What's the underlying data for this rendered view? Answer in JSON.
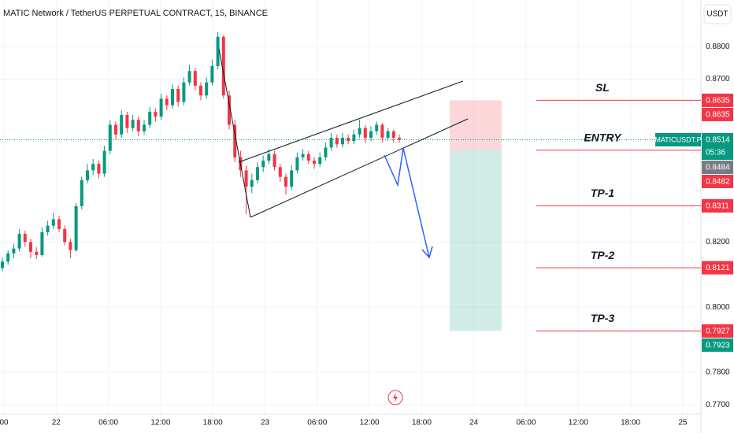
{
  "header": {
    "title": "MATIC Network / TetherUS PERPETUAL CONTRACT, 15, BINANCE",
    "currency": "USDT"
  },
  "chart_data": {
    "type": "candlestick",
    "up_color": "#089981",
    "down_color": "#f23645",
    "ylim": [
      0.7662,
      0.8943
    ],
    "yticks": [
      {
        "value": 0.88,
        "label": "0.8800"
      },
      {
        "value": 0.87,
        "label": "0.8700"
      },
      {
        "value": 0.82,
        "label": "0.8200"
      },
      {
        "value": 0.8,
        "label": "0.8000"
      },
      {
        "value": 0.78,
        "label": "0.7800"
      },
      {
        "value": 0.77,
        "label": "0.7700"
      }
    ],
    "x_labels": [
      "00",
      "22",
      "06:00",
      "12:00",
      "18:00",
      "23",
      "06:00",
      "12:00",
      "18:00",
      "24",
      "06:00",
      "12:00",
      "18:00",
      "25"
    ],
    "candles": [
      [
        0.812,
        0.8152,
        0.811,
        0.814
      ],
      [
        0.814,
        0.8175,
        0.813,
        0.8165
      ],
      [
        0.8165,
        0.8195,
        0.815,
        0.818
      ],
      [
        0.818,
        0.824,
        0.817,
        0.8225
      ],
      [
        0.8225,
        0.8235,
        0.8185,
        0.82
      ],
      [
        0.82,
        0.821,
        0.815,
        0.817
      ],
      [
        0.817,
        0.8185,
        0.8148,
        0.816
      ],
      [
        0.816,
        0.8245,
        0.8155,
        0.823
      ],
      [
        0.823,
        0.8265,
        0.822,
        0.825
      ],
      [
        0.825,
        0.829,
        0.824,
        0.827
      ],
      [
        0.827,
        0.828,
        0.823,
        0.824
      ],
      [
        0.824,
        0.825,
        0.819,
        0.82
      ],
      [
        0.82,
        0.821,
        0.815,
        0.8175
      ],
      [
        0.8175,
        0.832,
        0.817,
        0.831
      ],
      [
        0.831,
        0.84,
        0.83,
        0.839
      ],
      [
        0.839,
        0.844,
        0.838,
        0.842
      ],
      [
        0.842,
        0.8455,
        0.8405,
        0.844
      ],
      [
        0.844,
        0.845,
        0.8395,
        0.841
      ],
      [
        0.841,
        0.8495,
        0.84,
        0.848
      ],
      [
        0.848,
        0.8575,
        0.847,
        0.856
      ],
      [
        0.856,
        0.857,
        0.8515,
        0.853
      ],
      [
        0.853,
        0.8605,
        0.852,
        0.859
      ],
      [
        0.859,
        0.86,
        0.8535,
        0.855
      ],
      [
        0.855,
        0.859,
        0.854,
        0.8575
      ],
      [
        0.8575,
        0.8585,
        0.8525,
        0.854
      ],
      [
        0.854,
        0.8575,
        0.853,
        0.856
      ],
      [
        0.856,
        0.8615,
        0.855,
        0.86
      ],
      [
        0.86,
        0.861,
        0.857,
        0.8585
      ],
      [
        0.8585,
        0.8655,
        0.8575,
        0.864
      ],
      [
        0.864,
        0.865,
        0.8605,
        0.862
      ],
      [
        0.862,
        0.8685,
        0.861,
        0.867
      ],
      [
        0.867,
        0.868,
        0.8615,
        0.863
      ],
      [
        0.863,
        0.8705,
        0.862,
        0.869
      ],
      [
        0.869,
        0.8745,
        0.868,
        0.8725
      ],
      [
        0.8725,
        0.8735,
        0.8665,
        0.868
      ],
      [
        0.868,
        0.869,
        0.8635,
        0.865
      ],
      [
        0.865,
        0.8705,
        0.864,
        0.869
      ],
      [
        0.869,
        0.876,
        0.868,
        0.874
      ],
      [
        0.874,
        0.8845,
        0.873,
        0.883
      ],
      [
        0.883,
        0.8835,
        0.864,
        0.865
      ],
      [
        0.865,
        0.8665,
        0.8545,
        0.856
      ],
      [
        0.856,
        0.8575,
        0.8445,
        0.846
      ],
      [
        0.846,
        0.848,
        0.84,
        0.842
      ],
      [
        0.842,
        0.8435,
        0.8285,
        0.837
      ],
      [
        0.837,
        0.841,
        0.835,
        0.839
      ],
      [
        0.839,
        0.8445,
        0.838,
        0.843
      ],
      [
        0.843,
        0.8465,
        0.8415,
        0.845
      ],
      [
        0.845,
        0.8485,
        0.844,
        0.847
      ],
      [
        0.847,
        0.848,
        0.842,
        0.843
      ],
      [
        0.843,
        0.844,
        0.8385,
        0.84
      ],
      [
        0.84,
        0.841,
        0.8345,
        0.837
      ],
      [
        0.837,
        0.8435,
        0.836,
        0.842
      ],
      [
        0.842,
        0.8475,
        0.841,
        0.846
      ],
      [
        0.846,
        0.8485,
        0.845,
        0.847
      ],
      [
        0.847,
        0.848,
        0.844,
        0.845
      ],
      [
        0.845,
        0.846,
        0.8425,
        0.844
      ],
      [
        0.844,
        0.8475,
        0.843,
        0.846
      ],
      [
        0.846,
        0.8505,
        0.845,
        0.849
      ],
      [
        0.849,
        0.8535,
        0.848,
        0.852
      ],
      [
        0.852,
        0.853,
        0.849,
        0.85
      ],
      [
        0.85,
        0.8535,
        0.849,
        0.852
      ],
      [
        0.852,
        0.853,
        0.85,
        0.851
      ],
      [
        0.851,
        0.8545,
        0.85,
        0.853
      ],
      [
        0.853,
        0.8575,
        0.852,
        0.855
      ],
      [
        0.855,
        0.856,
        0.8505,
        0.852
      ],
      [
        0.852,
        0.8555,
        0.851,
        0.854
      ],
      [
        0.854,
        0.857,
        0.853,
        0.856
      ],
      [
        0.856,
        0.8565,
        0.8505,
        0.852
      ],
      [
        0.852,
        0.855,
        0.851,
        0.854
      ],
      [
        0.854,
        0.8545,
        0.8505,
        0.852
      ],
      [
        0.852,
        0.853,
        0.8505,
        0.8514
      ]
    ],
    "levels": [
      {
        "name": "SL",
        "value": 0.8635
      },
      {
        "name": "ENTRY",
        "value": 0.8482
      },
      {
        "name": "TP-1",
        "value": 0.8311
      },
      {
        "name": "TP-2",
        "value": 0.8121
      },
      {
        "name": "TP-3",
        "value": 0.7927
      }
    ],
    "level_color": "#f23645",
    "last": {
      "symbol": "MATICUSDT.P",
      "value": 0.8514,
      "countdown": "05:36",
      "color": "#089981"
    },
    "price_tags": [
      {
        "value": 0.8635,
        "color": "#f23645"
      },
      {
        "value": 0.8635,
        "color": "#f23645"
      },
      {
        "value": 0.8484,
        "color": "#787b86"
      },
      {
        "value": 0.8482,
        "color": "#f23645"
      },
      {
        "value": 0.8311,
        "color": "#f23645"
      },
      {
        "value": 0.8121,
        "color": "#f23645"
      },
      {
        "value": 0.7927,
        "color": "#f23645"
      },
      {
        "value": 0.7923,
        "color": "#089981"
      }
    ]
  }
}
